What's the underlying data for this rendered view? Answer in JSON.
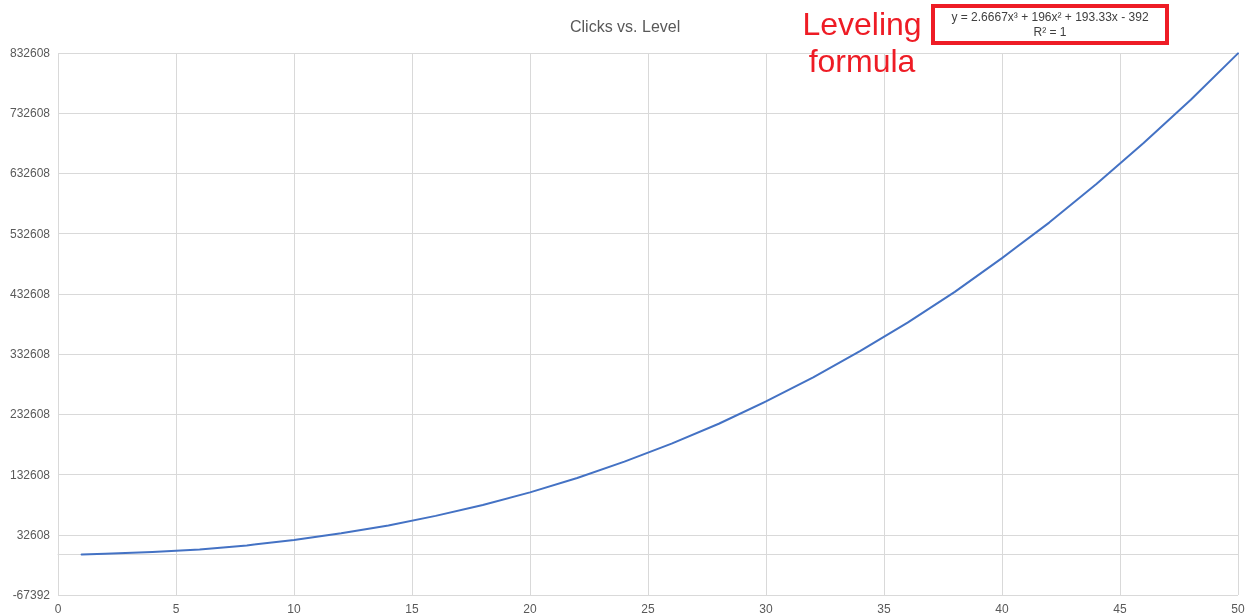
{
  "chart_data": {
    "type": "line",
    "title": "Clicks vs. Level",
    "annotations": [
      "y = 2.6667x³ + 196x² + 193.33x - 392",
      "R² = 1",
      "Leveling formula"
    ],
    "x": [
      1,
      2,
      4,
      6,
      8,
      10,
      12,
      14,
      16,
      18,
      20,
      22,
      24,
      26,
      28,
      30,
      32,
      34,
      36,
      38,
      40,
      42,
      44,
      46,
      48,
      50
    ],
    "series": [
      {
        "color": "#4472c4",
        "values": [
          0,
          1000,
          4000,
          8000,
          15000,
          24000,
          35000,
          48000,
          64000,
          82000,
          103000,
          127000,
          154000,
          184000,
          217000,
          254000,
          294000,
          338000,
          385000,
          436000,
          492000,
          551000,
          615000,
          683000,
          755000,
          832000
        ]
      }
    ],
    "xlim": [
      0,
      50
    ],
    "xticks": [
      0,
      5,
      10,
      15,
      20,
      25,
      30,
      35,
      40,
      45,
      50
    ],
    "ylim": [
      -67392,
      832608
    ],
    "yticks": [
      -67392,
      32608,
      132608,
      232608,
      332608,
      432608,
      532608,
      632608,
      732608,
      832608
    ],
    "grid": true,
    "marker": "none",
    "line_style": "solid"
  }
}
